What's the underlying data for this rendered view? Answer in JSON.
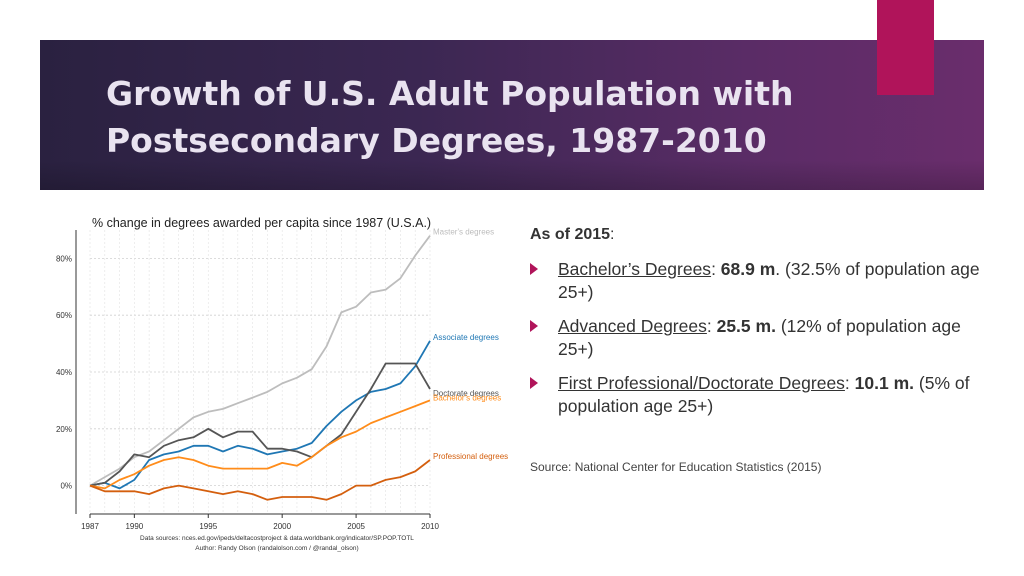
{
  "slide": {
    "title": "Growth of U.S. Adult Population with Postsecondary Degrees, 1987-2010",
    "accent_color": "#b0145a"
  },
  "chart_data": {
    "type": "line",
    "title": "% change in degrees awarded per capita since 1987 (U.S.A.)",
    "xlabel": "",
    "ylabel": "",
    "x": [
      1987,
      1988,
      1989,
      1990,
      1991,
      1992,
      1993,
      1994,
      1995,
      1996,
      1997,
      1998,
      1999,
      2000,
      2001,
      2002,
      2003,
      2004,
      2005,
      2006,
      2007,
      2008,
      2009,
      2010
    ],
    "xticks": [
      1987,
      1990,
      1995,
      2000,
      2005,
      2010
    ],
    "xtick_labels": [
      "1987",
      "1990",
      "1995",
      "2000",
      "2005",
      "2010"
    ],
    "yticks": [
      0,
      20,
      40,
      60,
      80
    ],
    "ytick_labels": [
      "0%",
      "20%",
      "40%",
      "60%",
      "80%"
    ],
    "xlim": [
      1987,
      2010
    ],
    "ylim": [
      -10,
      90
    ],
    "grid": true,
    "series": [
      {
        "name": "Master's degrees",
        "color": "#bdbdbd",
        "values": [
          0,
          3,
          6,
          10,
          12,
          16,
          20,
          24,
          26,
          27,
          29,
          31,
          33,
          36,
          38,
          41,
          49,
          61,
          63,
          68,
          69,
          73,
          81,
          88
        ]
      },
      {
        "name": "Associate degrees",
        "color": "#1f77b4",
        "values": [
          0,
          1,
          -1,
          2,
          9,
          11,
          12,
          14,
          14,
          12,
          14,
          13,
          11,
          12,
          13,
          15,
          21,
          26,
          30,
          33,
          34,
          36,
          42,
          51
        ]
      },
      {
        "name": "Doctorate degrees",
        "color": "#555555",
        "values": [
          0,
          1,
          5,
          11,
          10,
          14,
          16,
          17,
          20,
          17,
          19,
          19,
          13,
          13,
          12,
          10,
          14,
          18,
          26,
          34,
          43,
          43,
          43,
          34
        ]
      },
      {
        "name": "Bachelor's degrees",
        "color": "#ff8c1a",
        "values": [
          0,
          -1,
          2,
          4,
          7,
          9,
          10,
          9,
          7,
          6,
          6,
          6,
          6,
          8,
          7,
          10,
          14,
          17,
          19,
          22,
          24,
          26,
          28,
          30
        ]
      },
      {
        "name": "Professional degrees",
        "color": "#d45f0e",
        "values": [
          0,
          -2,
          -2,
          -2,
          -3,
          -1,
          0,
          -1,
          -2,
          -3,
          -2,
          -3,
          -5,
          -4,
          -4,
          -4,
          -5,
          -3,
          0,
          0,
          2,
          3,
          5,
          9
        ]
      }
    ],
    "labels": [
      {
        "text": "Master's degrees",
        "series": "Master's degrees"
      },
      {
        "text": "Associate degrees",
        "series": "Associate degrees"
      },
      {
        "text": "Doctorate degrees",
        "series": "Doctorate degrees"
      },
      {
        "text": "Bachelor's degrees",
        "series": "Bachelor's degrees"
      },
      {
        "text": "Professional degrees",
        "series": "Professional degrees"
      }
    ],
    "footer_line1": "Data sources: nces.ed.gov/ipeds/deltacostproject & data.worldbank.org/indicator/SP.POP.TOTL",
    "footer_line2": "Author: Randy Olson (randalolson.com / @randal_olson)"
  },
  "summary": {
    "as_of_label": "As of 2015",
    "as_of_colon": ":",
    "items": [
      {
        "link": "Bachelor’s Degrees",
        "sep": ": ",
        "value": "68.9 m",
        "rest": ". (32.5% of population age 25+)"
      },
      {
        "link": "Advanced Degrees",
        "sep": ": ",
        "value": "25.5 m.",
        "rest": " (12% of population age 25+)"
      },
      {
        "link": "First Professional/Doctorate Degrees",
        "sep": ": ",
        "value": "10.1 m.",
        "rest": " (5% of population age 25+)"
      }
    ]
  },
  "source": "Source: National Center for Education Statistics (2015)"
}
